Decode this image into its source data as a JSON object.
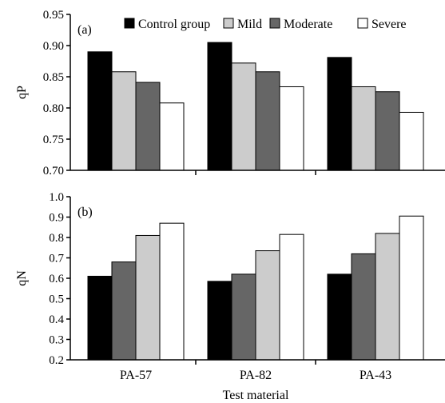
{
  "chart_data": [
    {
      "type": "bar",
      "panel_label": "(a)",
      "ylabel": "qP",
      "categories": [
        "PA-57",
        "PA-82",
        "PA-43"
      ],
      "ylim": [
        0.7,
        0.95
      ],
      "yticks": [
        "0.70",
        "0.75",
        "0.80",
        "0.85",
        "0.90",
        "0.95"
      ],
      "legend_placement": "top",
      "series": [
        {
          "name": "Control group",
          "color": "#000000",
          "values": [
            0.89,
            0.905,
            0.881
          ]
        },
        {
          "name": "Mild",
          "color": "#cccccc",
          "values": [
            0.858,
            0.872,
            0.834
          ]
        },
        {
          "name": "Moderate",
          "color": "#666666",
          "values": [
            0.841,
            0.858,
            0.826
          ]
        },
        {
          "name": "Severe",
          "color": "#ffffff",
          "values": [
            0.808,
            0.834,
            0.793
          ]
        }
      ]
    },
    {
      "type": "bar",
      "panel_label": "(b)",
      "ylabel": "qN",
      "xlabel": "Test material",
      "categories": [
        "PA-57",
        "PA-82",
        "PA-43"
      ],
      "ylim": [
        0.2,
        1.0
      ],
      "yticks": [
        "0.2",
        "0.3",
        "0.4",
        "0.5",
        "0.6",
        "0.7",
        "0.8",
        "0.9",
        "1.0"
      ],
      "series": [
        {
          "name": "Control group",
          "color": "#000000",
          "values": [
            0.61,
            0.585,
            0.62
          ]
        },
        {
          "name": "Moderate",
          "color": "#666666",
          "values": [
            0.68,
            0.62,
            0.72
          ]
        },
        {
          "name": "Mild",
          "color": "#cccccc",
          "values": [
            0.81,
            0.735,
            0.82
          ]
        },
        {
          "name": "Severe",
          "color": "#ffffff",
          "values": [
            0.87,
            0.815,
            0.905
          ]
        }
      ]
    }
  ]
}
